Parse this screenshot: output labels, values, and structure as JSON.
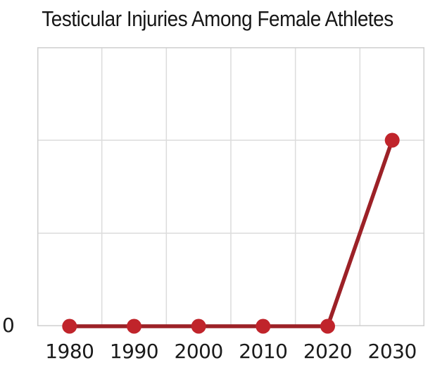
{
  "figure": {
    "title": "Testicular Injuries Among Female Athletes"
  },
  "colors": {
    "background": "#ffffff",
    "title_text": "#171717",
    "tick_text": "#1a1a1a",
    "grid": "#dcdcdc",
    "plot_border": "#cfcfcf",
    "line": "#9c2127",
    "marker": "#c0242b"
  },
  "x_axis": {
    "tick_labels": [
      "1980",
      "1990",
      "2000",
      "2010",
      "2020",
      "2030"
    ]
  },
  "y_axis": {
    "tick_labels": [
      "0"
    ]
  },
  "chart_data": {
    "type": "line",
    "title": "Testicular Injuries Among Female Athletes",
    "x": [
      1980,
      1990,
      2000,
      2010,
      2020,
      2030
    ],
    "x_tick_labels": [
      "1980",
      "1990",
      "2000",
      "2010",
      "2020",
      "2030"
    ],
    "values": [
      0,
      0,
      0,
      0,
      0,
      2
    ],
    "xlabel": "",
    "ylabel": "",
    "ylim": [
      0,
      3
    ],
    "y_gridline_step": 1,
    "y_tick_labels_shown": [
      "0"
    ],
    "grid": true,
    "legend": false,
    "marker": "circle",
    "marker_radius": 10.5,
    "line_width": 5.5,
    "line_color": "#9c2127",
    "marker_color": "#c0242b"
  }
}
